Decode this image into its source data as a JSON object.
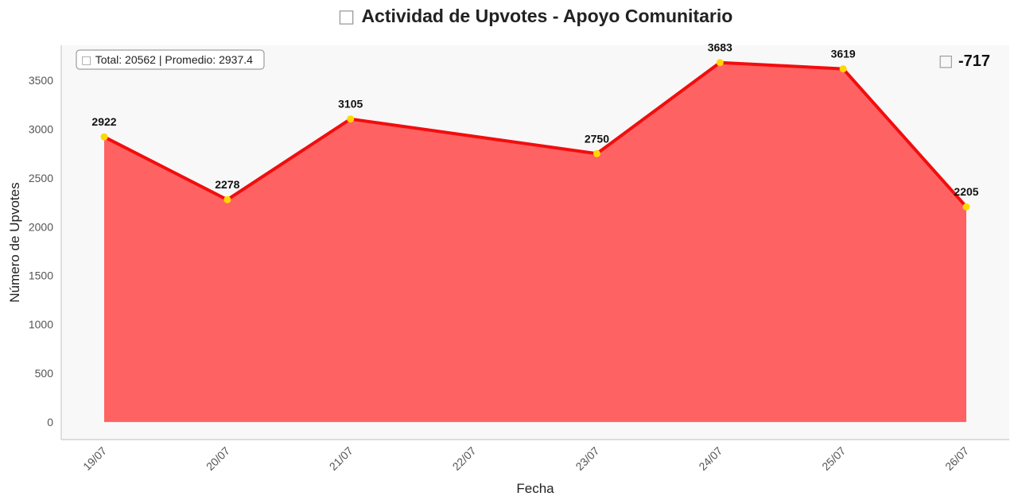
{
  "chart_data": {
    "type": "area",
    "title": "Actividad de Upvotes - Apoyo Comunitario",
    "title_icon": "trend-icon",
    "xlabel": "Fecha",
    "ylabel": "Número de Upvotes",
    "categories": [
      "19/07",
      "20/07",
      "21/07",
      "22/07",
      "23/07",
      "24/07",
      "25/07",
      "26/07"
    ],
    "points": [
      {
        "x": "19/07",
        "y": 2922,
        "label": "2922"
      },
      {
        "x": "20/07",
        "y": 2278,
        "label": "2278"
      },
      {
        "x": "21/07",
        "y": 3105,
        "label": "3105"
      },
      {
        "x": "23/07",
        "y": 2750,
        "label": "2750"
      },
      {
        "x": "24/07",
        "y": 3683,
        "label": "3683"
      },
      {
        "x": "25/07",
        "y": 3619,
        "label": "3619"
      },
      {
        "x": "26/07",
        "y": 2205,
        "label": "2205"
      }
    ],
    "y_ticks": [
      0,
      500,
      1000,
      1500,
      2000,
      2500,
      3000,
      3500
    ],
    "ylim": [
      -180,
      3860
    ],
    "grid": false,
    "colors": {
      "line": "#f20d0d",
      "fill": "#ff6262",
      "marker": "#ffd700",
      "plot_bg": "#f8f8f8",
      "axis": "#cccccc"
    },
    "stats_box": {
      "icon": "stats-icon",
      "text": "Total: 20562 | Promedio: 2937.4"
    },
    "change": {
      "icon": "trend-down-icon",
      "text": "-717"
    }
  }
}
